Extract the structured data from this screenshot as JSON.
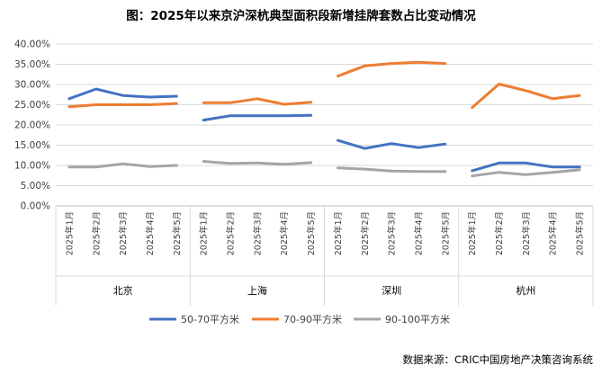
{
  "chart_data": {
    "type": "line",
    "title": "图：2025年以来京沪深杭典型面积段新增挂牌套数占比变动情况",
    "source": "数据来源：CRIC中国房地产决策咨询系统",
    "y_ticks": [
      "0.00%",
      "5.00%",
      "10.00%",
      "15.00%",
      "20.00%",
      "25.00%",
      "30.00%",
      "35.00%",
      "40.00%"
    ],
    "ylim": [
      0,
      40
    ],
    "groups": [
      {
        "name": "北京",
        "months": [
          "2025年1月",
          "2025年2月",
          "2025年3月",
          "2025年4月",
          "2025年5月"
        ]
      },
      {
        "name": "上海",
        "months": [
          "2025年1月",
          "2025年2月",
          "2025年3月",
          "2025年4月",
          "2025年5月"
        ]
      },
      {
        "name": "深圳",
        "months": [
          "2025年1月",
          "2025年2月",
          "2025年3月",
          "2025年4月",
          "2025年5月"
        ]
      },
      {
        "name": "杭州",
        "months": [
          "2025年1月",
          "2025年2月",
          "2025年3月",
          "2025年4月",
          "2025年5月"
        ]
      }
    ],
    "series": [
      {
        "name": "50-70平方米",
        "color": "#4472C4",
        "values": [
          [
            26.5,
            28.9,
            27.3,
            26.9,
            27.1
          ],
          [
            21.2,
            22.3,
            22.3,
            22.3,
            22.4
          ],
          [
            16.2,
            14.2,
            15.4,
            14.4,
            15.3
          ],
          [
            8.7,
            10.6,
            10.6,
            9.6,
            9.6
          ]
        ]
      },
      {
        "name": "70-90平方米",
        "color": "#ED7D31",
        "values": [
          [
            24.5,
            25.0,
            25.0,
            25.0,
            25.3
          ],
          [
            25.5,
            25.5,
            26.5,
            25.1,
            25.6
          ],
          [
            32.1,
            34.6,
            35.2,
            35.5,
            35.2
          ],
          [
            24.3,
            30.1,
            28.5,
            26.5,
            27.3
          ]
        ]
      },
      {
        "name": "90-100平方米",
        "color": "#A5A5A5",
        "values": [
          [
            9.6,
            9.6,
            10.4,
            9.7,
            10.0
          ],
          [
            11.0,
            10.5,
            10.6,
            10.3,
            10.7
          ],
          [
            9.4,
            9.1,
            8.6,
            8.5,
            8.5
          ],
          [
            7.4,
            8.3,
            7.7,
            8.3,
            8.9
          ]
        ]
      }
    ]
  }
}
